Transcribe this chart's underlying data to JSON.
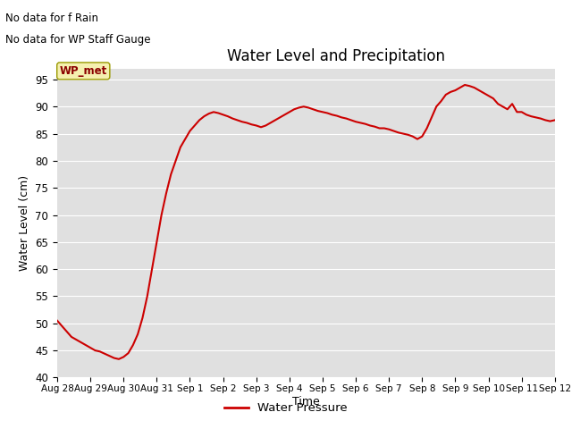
{
  "title": "Water Level and Precipitation",
  "xlabel": "Time",
  "ylabel": "Water Level (cm)",
  "annotations": [
    "No data for f Rain",
    "No data for WP Staff Gauge"
  ],
  "legend_label": "Water Pressure",
  "legend_box_label": "WP_met",
  "ylim": [
    40,
    97
  ],
  "yticks": [
    40,
    45,
    50,
    55,
    60,
    65,
    70,
    75,
    80,
    85,
    90,
    95
  ],
  "x_tick_labels": [
    "Aug 28",
    "Aug 29",
    "Aug 30",
    "Aug 31",
    "Sep 1",
    "Sep 2",
    "Sep 3",
    "Sep 4",
    "Sep 5",
    "Sep 6",
    "Sep 7",
    "Sep 8",
    "Sep 9",
    "Sep 10",
    "Sep 11",
    "Sep 12"
  ],
  "line_color": "#cc0000",
  "background_color": "#e0e0e0",
  "figure_bg": "#ffffff",
  "data_x": [
    0,
    1,
    2,
    3,
    4,
    5,
    6,
    7,
    8,
    9,
    10,
    11,
    12,
    13,
    14,
    15,
    16,
    17,
    18,
    19,
    20,
    21,
    22,
    23,
    24,
    25,
    26,
    27,
    28,
    29,
    30,
    31,
    32,
    33,
    34,
    35,
    36,
    37,
    38,
    39,
    40,
    41,
    42,
    43,
    44,
    45,
    46,
    47,
    48,
    49,
    50,
    51,
    52,
    53,
    54,
    55,
    56,
    57,
    58,
    59,
    60,
    61,
    62,
    63,
    64,
    65,
    66,
    67,
    68,
    69,
    70,
    71,
    72,
    73,
    74,
    75,
    76,
    77,
    78,
    79,
    80,
    81,
    82,
    83,
    84,
    85,
    86,
    87,
    88,
    89,
    90,
    91,
    92,
    93,
    94,
    95,
    96,
    97,
    98,
    99,
    100,
    101,
    102,
    103,
    104,
    105
  ],
  "data_y": [
    50.5,
    49.5,
    48.5,
    47.5,
    47.0,
    46.5,
    46.0,
    45.5,
    45.0,
    44.8,
    44.4,
    44.0,
    43.6,
    43.4,
    43.8,
    44.5,
    46.0,
    48.0,
    51.0,
    55.0,
    60.0,
    65.0,
    70.0,
    74.0,
    77.5,
    80.0,
    82.5,
    84.0,
    85.5,
    86.5,
    87.5,
    88.2,
    88.7,
    89.0,
    88.8,
    88.5,
    88.2,
    87.8,
    87.5,
    87.2,
    87.0,
    86.7,
    86.5,
    86.2,
    86.5,
    87.0,
    87.5,
    88.0,
    88.5,
    89.0,
    89.5,
    89.8,
    90.0,
    89.8,
    89.5,
    89.2,
    89.0,
    88.8,
    88.5,
    88.3,
    88.0,
    87.8,
    87.5,
    87.2,
    87.0,
    86.8,
    86.5,
    86.3,
    86.0,
    86.0,
    85.8,
    85.5,
    85.2,
    85.0,
    84.8,
    84.5,
    84.0,
    84.5,
    86.0,
    88.0,
    90.0,
    91.0,
    92.2,
    92.7,
    93.0,
    93.5,
    94.0,
    93.8,
    93.5,
    93.0,
    92.5,
    92.0,
    91.5,
    90.5,
    90.0,
    89.5,
    90.5,
    89.0,
    89.0,
    88.5,
    88.2,
    88.0,
    87.8,
    87.5,
    87.3,
    87.5
  ]
}
